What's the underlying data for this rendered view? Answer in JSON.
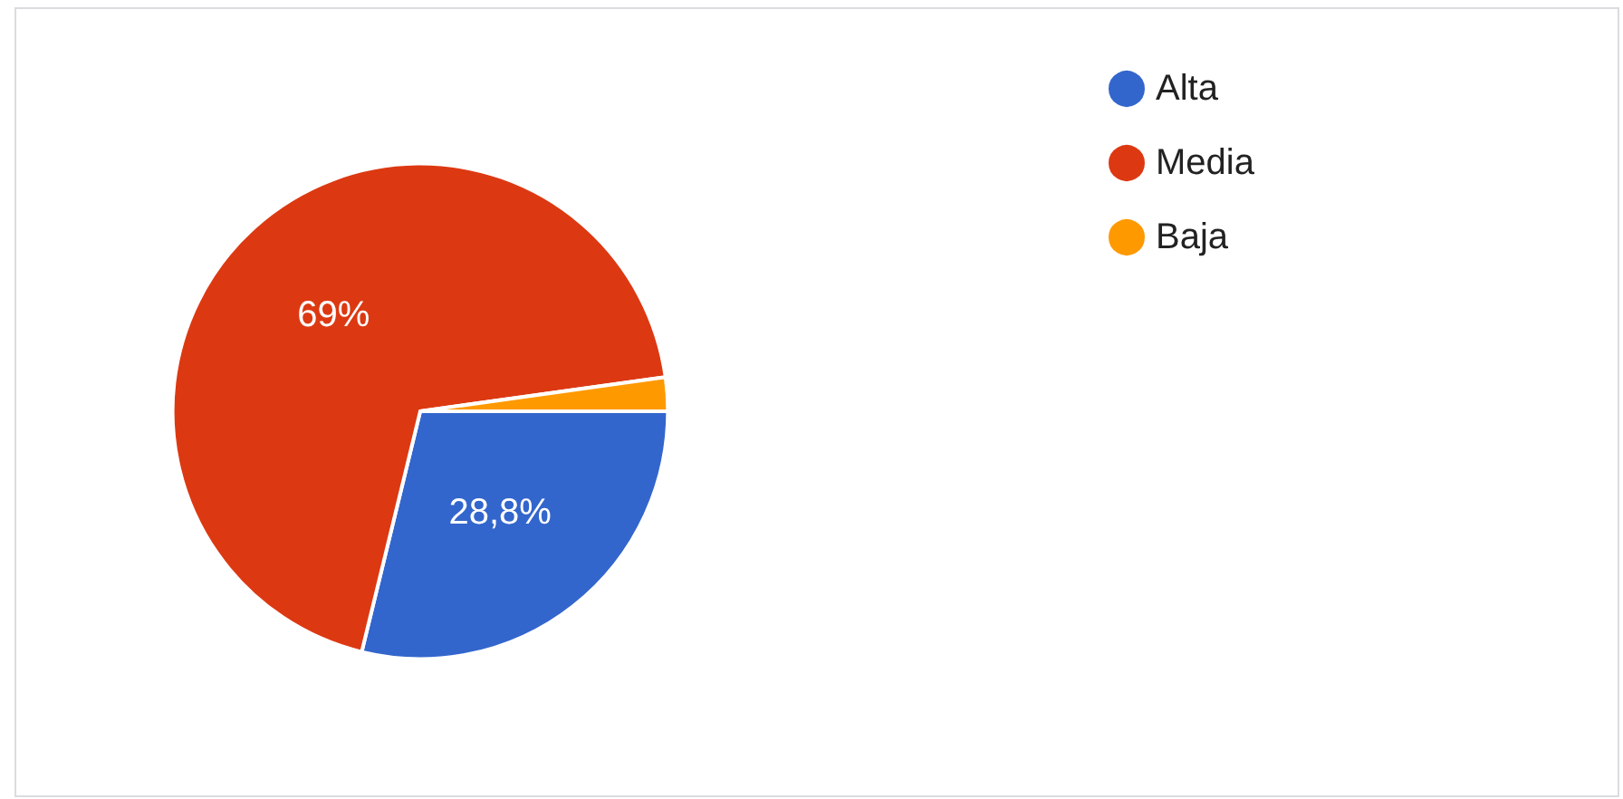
{
  "chart_data": {
    "type": "pie",
    "categories": [
      "Alta",
      "Media",
      "Baja"
    ],
    "values": [
      28.8,
      69,
      2.2
    ],
    "colors": [
      "#3366cc",
      "#dc3912",
      "#ff9900"
    ],
    "value_labels": [
      "28,8%",
      "69%",
      null
    ],
    "legend": "top right"
  }
}
